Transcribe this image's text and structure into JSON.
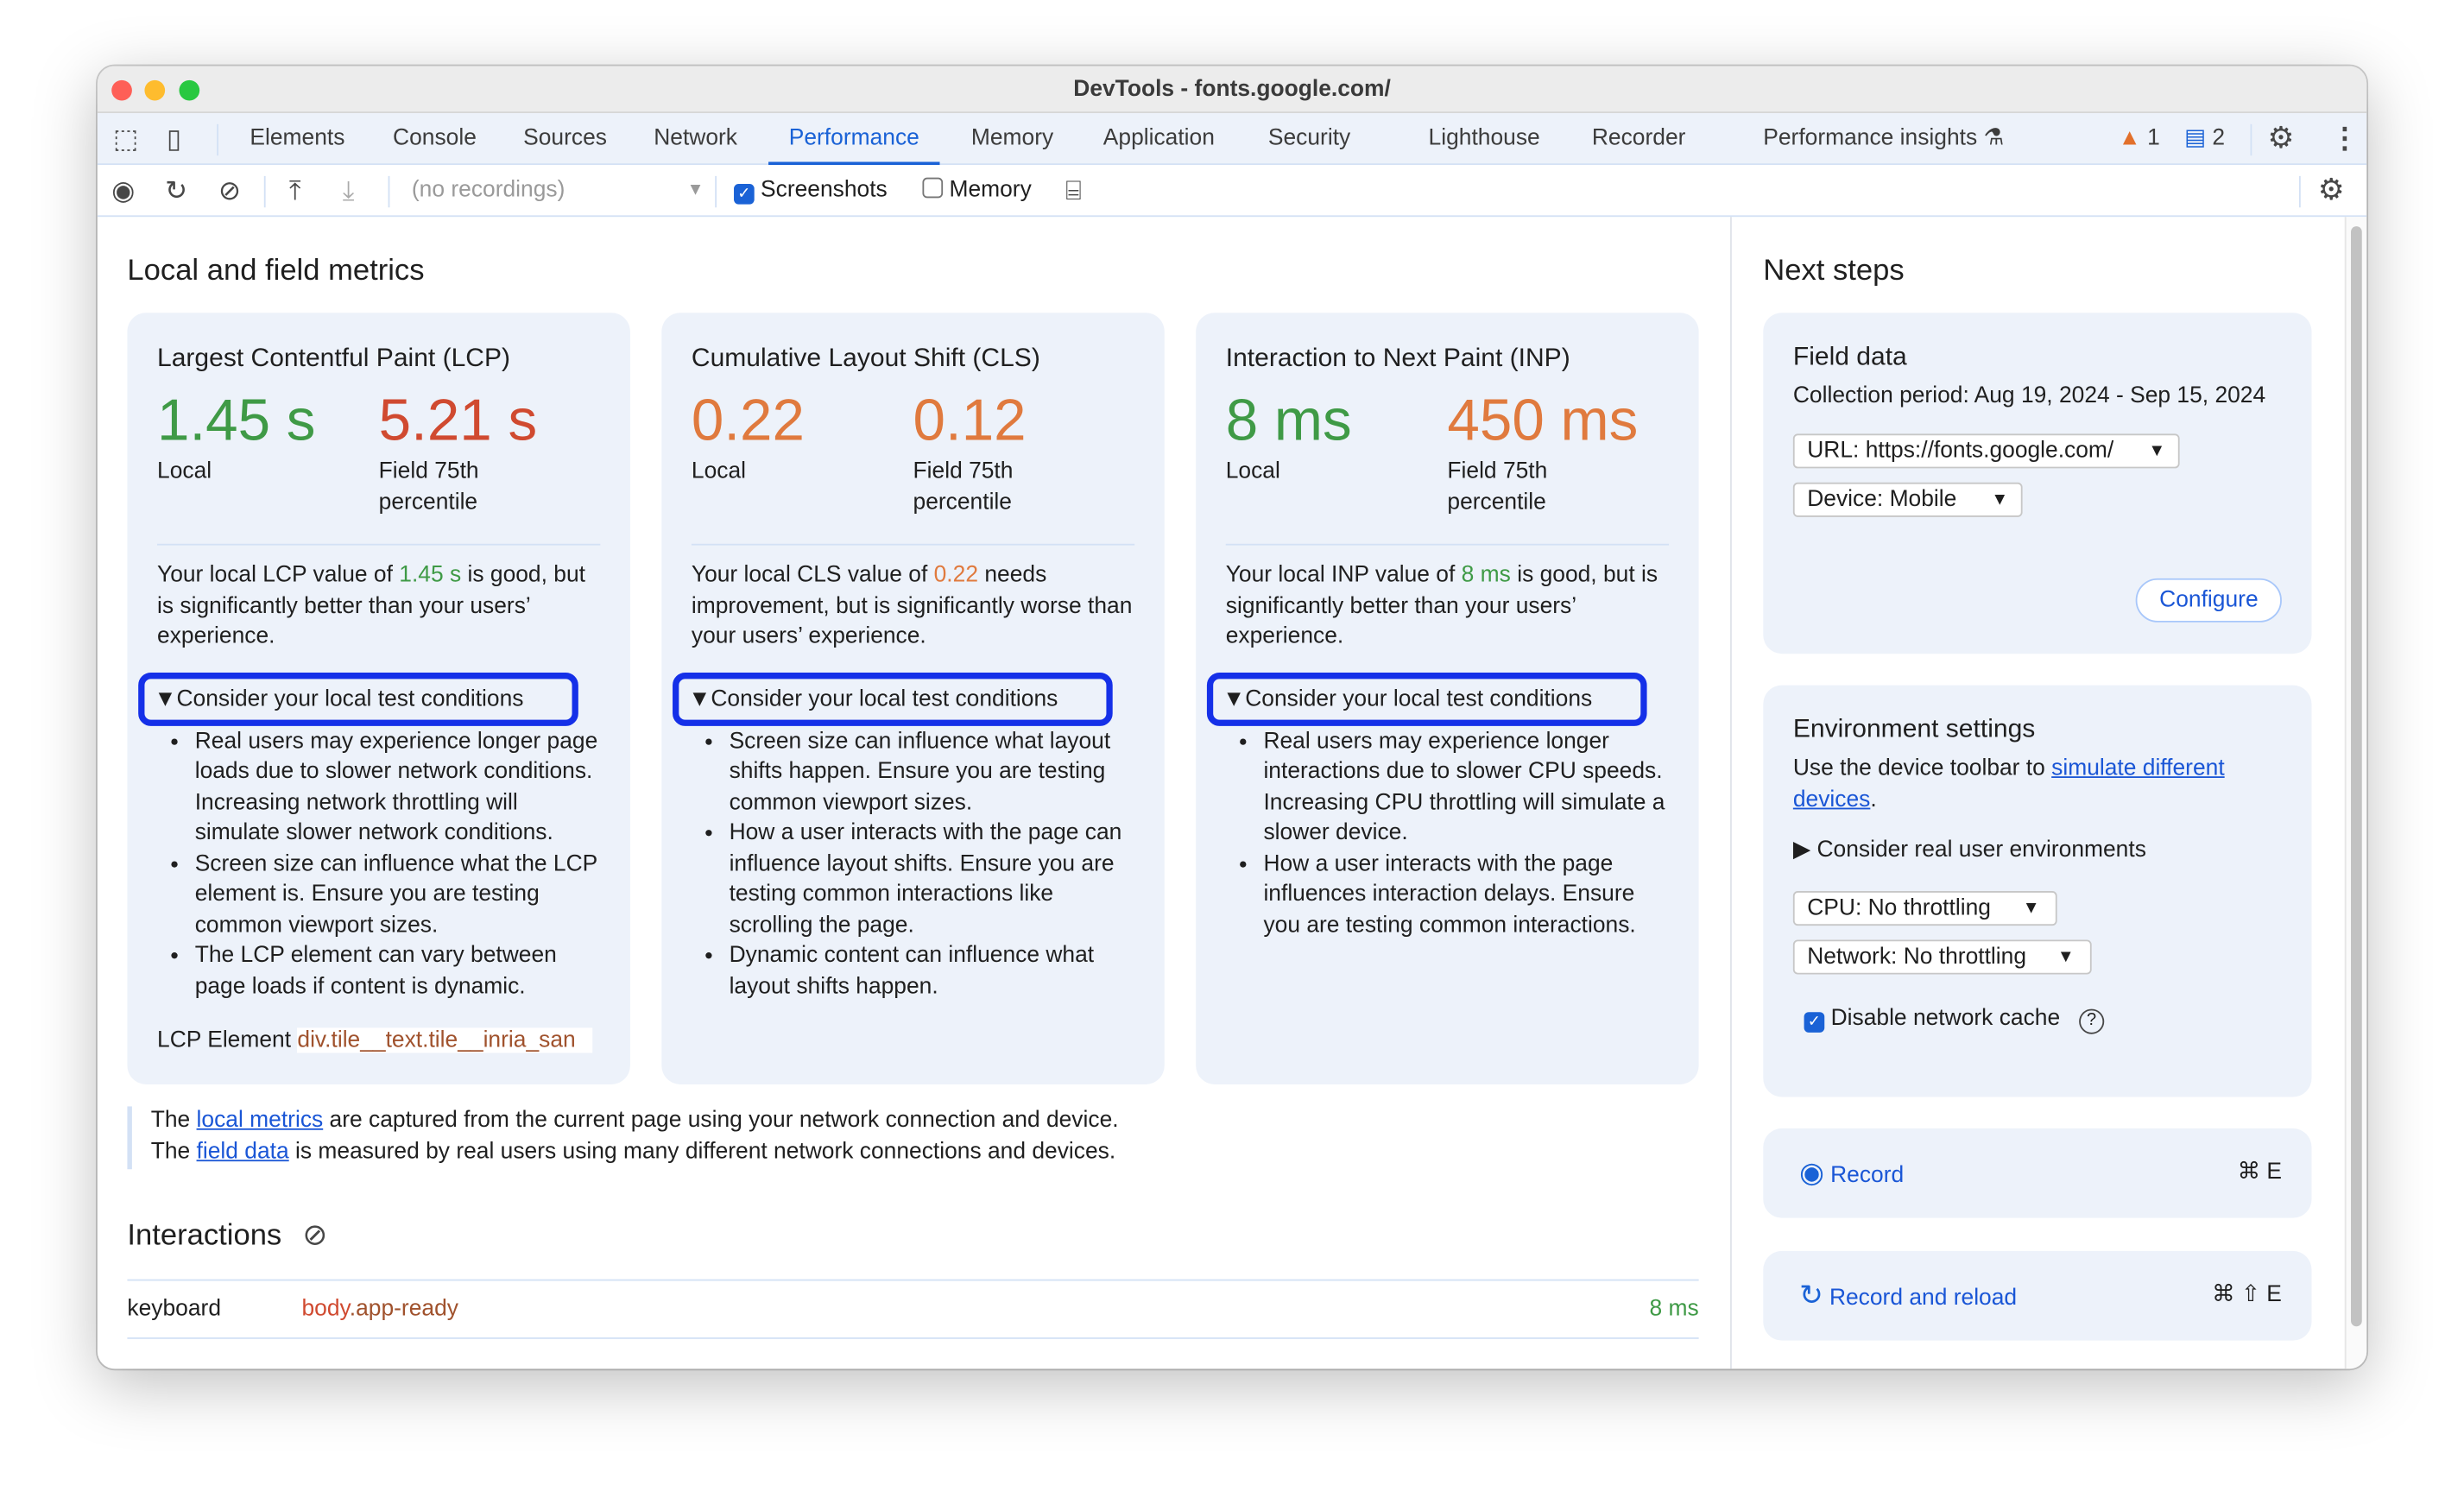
{
  "window": {
    "title": "DevTools - fonts.google.com/"
  },
  "tabs": [
    "Elements",
    "Console",
    "Sources",
    "Network",
    "Performance",
    "Memory",
    "Application",
    "Security",
    "Lighthouse",
    "Recorder",
    "Performance insights"
  ],
  "active_tab": "Performance",
  "badges": {
    "warnings": "1",
    "messages": "2"
  },
  "toolbar": {
    "recordings_placeholder": "(no recordings)",
    "screenshots": "Screenshots",
    "memory": "Memory",
    "screenshots_checked": true,
    "memory_checked": false
  },
  "main": {
    "title": "Local and field metrics",
    "cards": [
      {
        "title": "Largest Contentful Paint (LCP)",
        "local": "1.45 s",
        "field": "5.21 s",
        "local_label": "Local",
        "field_label1": "Field 75th",
        "field_label2": "percentile",
        "desc_pre": "Your local LCP value of ",
        "desc_val": "1.45 s",
        "desc_post": " is good, but is significantly better than your users’ experience.",
        "cond": "▼Consider your local test conditions",
        "bullets": [
          "Real users may experience longer page loads due to slower network conditions. Increasing network throttling will simulate slower network conditions.",
          "Screen size can influence what the LCP element is. Ensure you are testing common viewport sizes.",
          "The LCP element can vary between page loads if content is dynamic."
        ],
        "element_label": "LCP Element",
        "element_value": "div.tile__text.tile__inria_san"
      },
      {
        "title": "Cumulative Layout Shift (CLS)",
        "local": "0.22",
        "field": "0.12",
        "local_label": "Local",
        "field_label1": "Field 75th",
        "field_label2": "percentile",
        "desc_pre": "Your local CLS value of ",
        "desc_val": "0.22",
        "desc_post": " needs improvement, but is significantly worse than your users’ experience.",
        "cond": "▼Consider your local test conditions",
        "bullets": [
          "Screen size can influence what layout shifts happen. Ensure you are testing common viewport sizes.",
          "How a user interacts with the page can influence layout shifts. Ensure you are testing common interactions like scrolling the page.",
          "Dynamic content can influence what layout shifts happen."
        ]
      },
      {
        "title": "Interaction to Next Paint (INP)",
        "local": "8 ms",
        "field": "450 ms",
        "local_label": "Local",
        "field_label1": "Field 75th",
        "field_label2": "percentile",
        "desc_pre": "Your local INP value of ",
        "desc_val": "8 ms",
        "desc_post": " is good, but is significantly better than your users’ experience.",
        "cond": "▼Consider your local test conditions",
        "bullets": [
          "Real users may experience longer interactions due to slower CPU speeds. Increasing CPU throttling will simulate a slower device.",
          "How a user interacts with the page influences interaction delays. Ensure you are testing common interactions."
        ]
      }
    ],
    "note1_pre": "The ",
    "note1_link": "local metrics",
    "note1_post": " are captured from the current page using your network connection and device.",
    "note2_pre": "The ",
    "note2_link": "field data",
    "note2_post": " is measured by real users using many different network connections and devices.",
    "interactions_title": "Interactions",
    "interactions": [
      {
        "type": "keyboard",
        "target_tag": "body",
        "target_class": ".app-ready",
        "time": "8 ms"
      }
    ]
  },
  "side": {
    "title": "Next steps",
    "field": {
      "title": "Field data",
      "period": "Collection period: Aug 19, 2024 - Sep 15, 2024",
      "url": "URL: https://fonts.google.com/",
      "device": "Device: Mobile",
      "configure": "Configure"
    },
    "env": {
      "title": "Environment settings",
      "pre": "Use the device toolbar to ",
      "link": "simulate different devices",
      "post": ".",
      "consider": "▶ Consider real user environments",
      "cpu": "CPU: No throttling",
      "network": "Network: No throttling",
      "cache": "Disable network cache"
    },
    "record": {
      "label": "Record",
      "shortcut": "⌘ E"
    },
    "reload": {
      "label": "Record and reload",
      "shortcut": "⌘ ⇧ E"
    }
  },
  "colors": {
    "good": "#3f9a46",
    "poor": "#d04a30",
    "needs_improvement": "#e07a3e",
    "accent": "#1a62d6"
  }
}
